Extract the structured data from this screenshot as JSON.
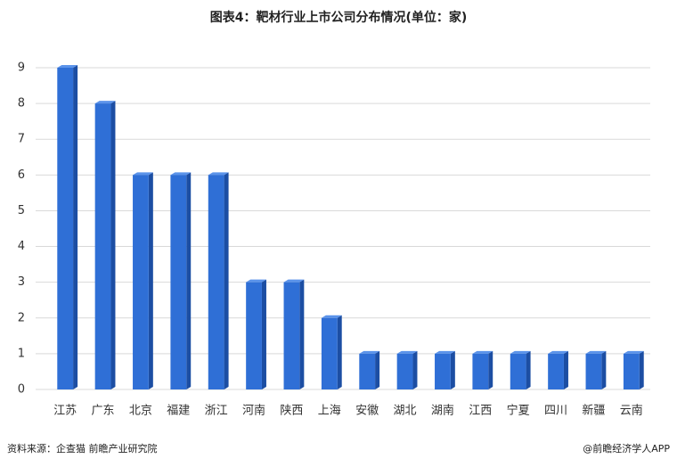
{
  "chart_data": {
    "type": "bar",
    "title": "图表4：靶材行业上市公司分布情况(单位：家)",
    "categories": [
      "江苏",
      "广东",
      "北京",
      "福建",
      "浙江",
      "河南",
      "陕西",
      "上海",
      "安徽",
      "湖北",
      "湖南",
      "江西",
      "宁夏",
      "四川",
      "新疆",
      "云南"
    ],
    "values": [
      9,
      8,
      6,
      6,
      6,
      3,
      3,
      2,
      1,
      1,
      1,
      1,
      1,
      1,
      1,
      1
    ],
    "color": "#2f6fd6",
    "ylim": [
      0,
      9
    ],
    "yticks": [
      0,
      1,
      2,
      3,
      4,
      5,
      6,
      7,
      8,
      9
    ],
    "grid": true,
    "source": "资料来源：企查猫 前瞻产业研究院",
    "credit": "@前瞻经济学人APP"
  }
}
